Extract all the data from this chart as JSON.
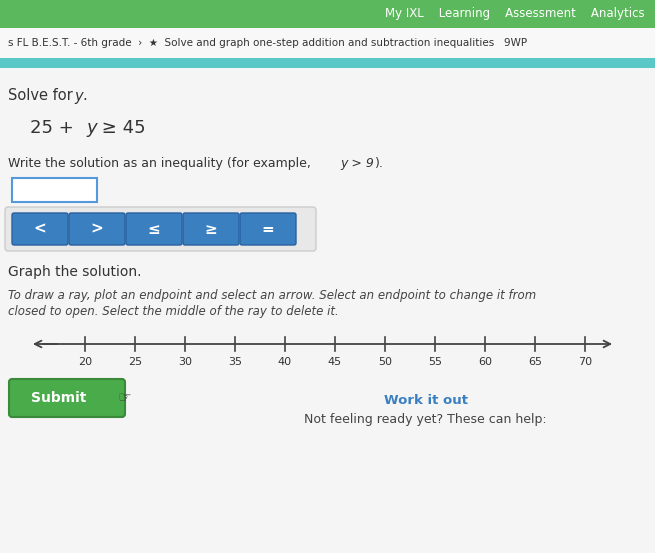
{
  "bg_color": "#e0e0e0",
  "top_bar_color": "#5cb85c",
  "breadcrumb_bg": "#f0f0f0",
  "teal_bar_color": "#5bc8c8",
  "nav_text": "My IXL    Learning    Assessment    Analytics",
  "breadcrumb": "s FL B.E.S.T. - 6th grade  ›  ★  Solve and graph one-step addition and subtraction inequalities   9WP",
  "solve_label": "Solve for ",
  "solve_var": "y",
  "equation_left": "25 + ",
  "equation_var": "y",
  "equation_right": " ≥ 45",
  "write_text": "Write the solution as an inequality (for example, ",
  "write_italic": "y > 9",
  "write_end": ").",
  "symbols": [
    "<",
    ">",
    "≤",
    "≥",
    "="
  ],
  "symbol_bg": "#3a80c0",
  "symbol_border": "#2a60a0",
  "graph_label": "Graph the solution.",
  "instruction_line1": "To draw a ray, plot an endpoint and select an arrow. Select an endpoint to change it from",
  "instruction_line2": "closed to open. Select the middle of the ray to delete it.",
  "number_line_ticks": [
    20,
    25,
    30,
    35,
    40,
    45,
    50,
    55,
    60,
    65,
    70
  ],
  "submit_bg": "#4aab4a",
  "submit_border": "#3a8a3a",
  "submit_text": "Submit",
  "work_out_text": "Work it out",
  "work_out_color": "#3a80c0",
  "not_ready_text": "Not feeling ready yet? These can help:",
  "input_box_border": "#5599dd",
  "panel_bg": "#e8e8e8",
  "panel_border": "#cccccc",
  "white": "#ffffff",
  "text_dark": "#333333",
  "text_medium": "#444444"
}
